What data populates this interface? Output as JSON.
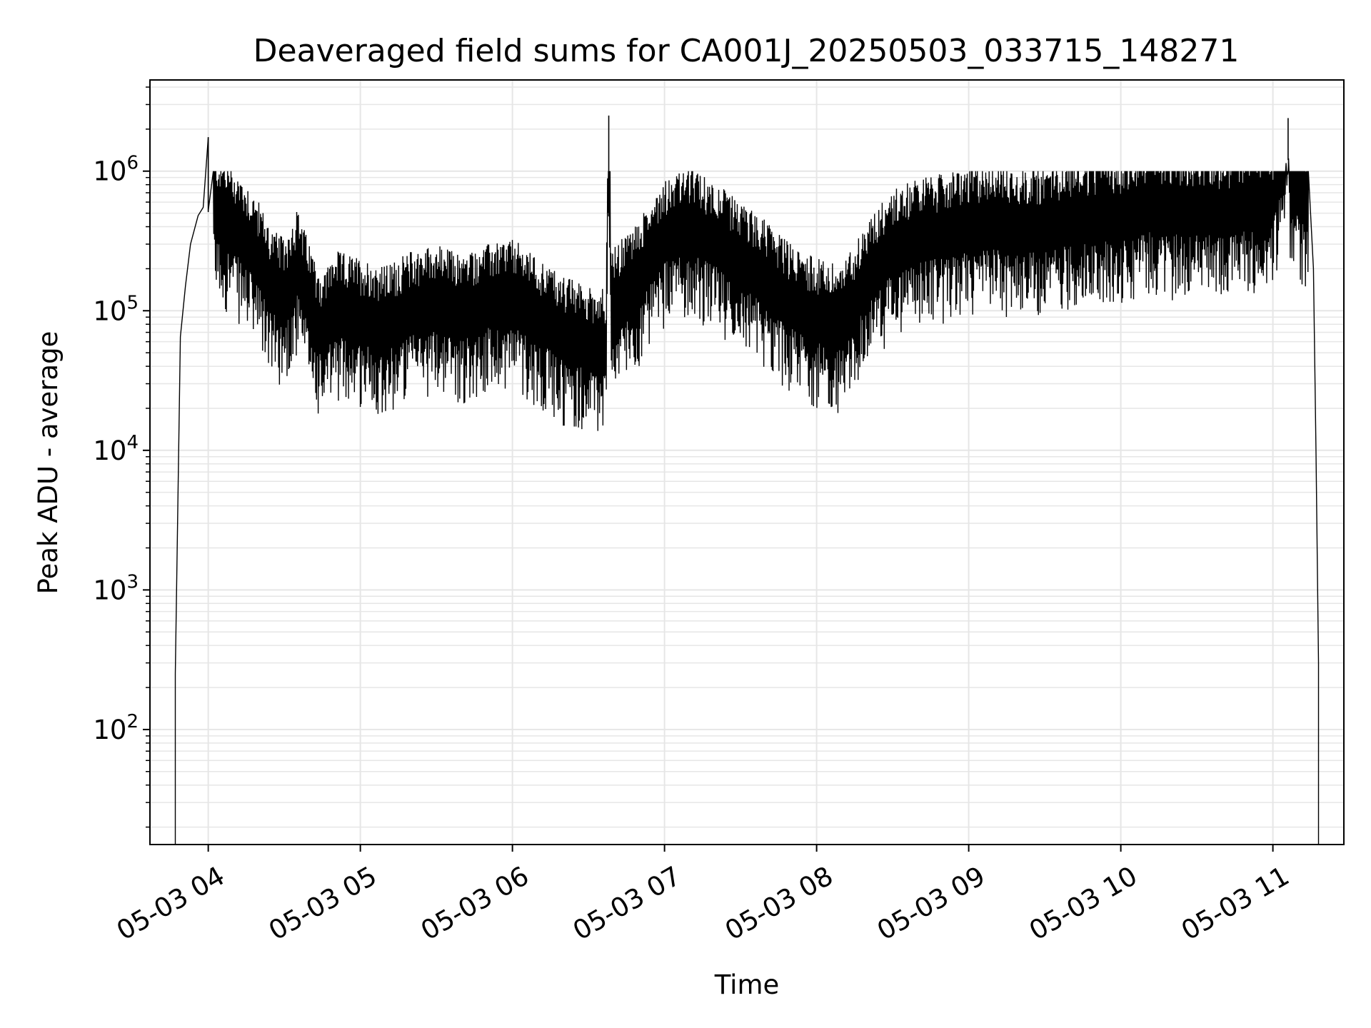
{
  "chart_data": {
    "type": "line",
    "title": "Deaveraged field sums for CA001J_20250503_033715_148271",
    "xlabel": "Time",
    "ylabel": "Peak ADU - average",
    "x_unit": "hours",
    "yscale": "log",
    "ylim": [
      15,
      4500000
    ],
    "xlim": [
      "05-03 03:37",
      "05-03 11:28"
    ],
    "grid": true,
    "line_color": "#000000",
    "grid_color": "#e6e6e6",
    "x_ticks": [
      {
        "label": "05-03 04",
        "value": "05-03 04:00"
      },
      {
        "label": "05-03 05",
        "value": "05-03 05:00"
      },
      {
        "label": "05-03 06",
        "value": "05-03 06:00"
      },
      {
        "label": "05-03 07",
        "value": "05-03 07:00"
      },
      {
        "label": "05-03 08",
        "value": "05-03 08:00"
      },
      {
        "label": "05-03 09",
        "value": "05-03 09:00"
      },
      {
        "label": "05-03 10",
        "value": "05-03 10:00"
      },
      {
        "label": "05-03 11",
        "value": "05-03 11:00"
      }
    ],
    "y_ticks": [
      {
        "base": "10",
        "exp": "2",
        "value": 100
      },
      {
        "base": "10",
        "exp": "3",
        "value": 1000
      },
      {
        "base": "10",
        "exp": "4",
        "value": 10000
      },
      {
        "base": "10",
        "exp": "5",
        "value": 100000
      },
      {
        "base": "10",
        "exp": "6",
        "value": 1000000
      }
    ],
    "series": [
      {
        "points": [
          [
            "05-03 03:47",
            15
          ],
          [
            "05-03 03:47",
            250
          ],
          [
            "05-03 03:48",
            4000
          ],
          [
            "05-03 03:49",
            65000
          ],
          [
            "05-03 03:51",
            150000
          ],
          [
            "05-03 03:53",
            300000
          ],
          [
            "05-03 03:56",
            480000
          ],
          [
            "05-03 03:58",
            550000
          ],
          [
            "05-03 04:00",
            1750000
          ],
          [
            "05-03 04:00",
            520000
          ],
          [
            "05-03 04:05",
            420000
          ],
          [
            "05-03 04:10",
            350000
          ],
          [
            "05-03 04:15",
            280000
          ],
          [
            "05-03 04:20",
            200000
          ],
          [
            "05-03 04:25",
            130000
          ],
          [
            "05-03 04:30",
            110000
          ],
          [
            "05-03 04:35",
            180000
          ],
          [
            "05-03 04:40",
            100000
          ],
          [
            "05-03 04:45",
            60000
          ],
          [
            "05-03 04:50",
            90000
          ],
          [
            "05-03 05:00",
            80000
          ],
          [
            "05-03 05:10",
            70000
          ],
          [
            "05-03 05:20",
            90000
          ],
          [
            "05-03 05:30",
            100000
          ],
          [
            "05-03 05:40",
            85000
          ],
          [
            "05-03 05:50",
            100000
          ],
          [
            "05-03 06:00",
            110000
          ],
          [
            "05-03 06:10",
            80000
          ],
          [
            "05-03 06:20",
            60000
          ],
          [
            "05-03 06:30",
            50000
          ],
          [
            "05-03 06:37",
            50000
          ],
          [
            "05-03 06:38",
            2500000
          ],
          [
            "05-03 06:39",
            90000
          ],
          [
            "05-03 06:50",
            150000
          ],
          [
            "05-03 07:00",
            300000
          ],
          [
            "05-03 07:10",
            350000
          ],
          [
            "05-03 07:20",
            280000
          ],
          [
            "05-03 07:30",
            200000
          ],
          [
            "05-03 07:40",
            150000
          ],
          [
            "05-03 07:50",
            100000
          ],
          [
            "05-03 08:00",
            80000
          ],
          [
            "05-03 08:10",
            70000
          ],
          [
            "05-03 08:20",
            150000
          ],
          [
            "05-03 08:30",
            250000
          ],
          [
            "05-03 08:40",
            300000
          ],
          [
            "05-03 08:50",
            320000
          ],
          [
            "05-03 09:00",
            350000
          ],
          [
            "05-03 09:10",
            380000
          ],
          [
            "05-03 09:20",
            340000
          ],
          [
            "05-03 09:30",
            360000
          ],
          [
            "05-03 09:40",
            400000
          ],
          [
            "05-03 09:50",
            420000
          ],
          [
            "05-03 10:00",
            430000
          ],
          [
            "05-03 10:10",
            500000
          ],
          [
            "05-03 10:20",
            470000
          ],
          [
            "05-03 10:30",
            480000
          ],
          [
            "05-03 10:40",
            450000
          ],
          [
            "05-03 10:50",
            500000
          ],
          [
            "05-03 11:00",
            520000
          ],
          [
            "05-03 11:06",
            2400000
          ],
          [
            "05-03 11:07",
            600000
          ],
          [
            "05-03 11:10",
            650000
          ],
          [
            "05-03 11:14",
            500000
          ],
          [
            "05-03 11:16",
            200000
          ],
          [
            "05-03 11:17",
            10000
          ],
          [
            "05-03 11:18",
            300
          ],
          [
            "05-03 11:18",
            15
          ]
        ],
        "noise_band": {
          "start": "05-03 04:02",
          "end": "05-03 11:14",
          "description": "dense oscillation between local lows and highs"
        }
      }
    ]
  }
}
